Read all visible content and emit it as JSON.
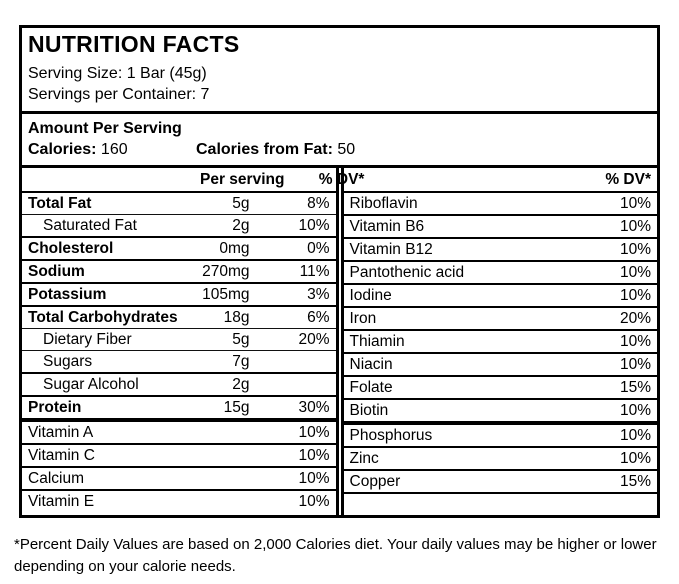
{
  "label": {
    "title": "NUTRITION FACTS",
    "serving_size": "Serving Size: 1 Bar (45g)",
    "servings_per_container": "Servings per Container: 7",
    "amount_per_serving": "Amount Per Serving",
    "calories_label": "Calories:",
    "calories_value": "160",
    "calories_from_fat_label": "Calories from Fat:",
    "calories_from_fat_value": "50"
  },
  "left_table": {
    "header_amount": "Per serving",
    "header_dv": "% DV*",
    "rows": [
      {
        "name": "Total Fat",
        "amount": "5g",
        "dv": "8%",
        "bold": true,
        "indent": false,
        "sep": "thin"
      },
      {
        "name": "Saturated Fat",
        "amount": "2g",
        "dv": "10%",
        "bold": false,
        "indent": true,
        "sep": "med"
      },
      {
        "name": "Cholesterol",
        "amount": "0mg",
        "dv": "0%",
        "bold": true,
        "indent": false,
        "sep": "med"
      },
      {
        "name": "Sodium",
        "amount": "270mg",
        "dv": "11%",
        "bold": true,
        "indent": false,
        "sep": "med"
      },
      {
        "name": "Potassium",
        "amount": "105mg",
        "dv": "3%",
        "bold": true,
        "indent": false,
        "sep": "med"
      },
      {
        "name": "Total Carbohydrates",
        "amount": "18g",
        "dv": "6%",
        "bold": true,
        "indent": false,
        "sep": "thin"
      },
      {
        "name": "Dietary Fiber",
        "amount": "5g",
        "dv": "20%",
        "bold": false,
        "indent": true,
        "sep": "thin"
      },
      {
        "name": "Sugars",
        "amount": "7g",
        "dv": "",
        "bold": false,
        "indent": true,
        "sep": "med"
      },
      {
        "name": "Sugar Alcohol",
        "amount": "2g",
        "dv": "",
        "bold": false,
        "indent": true,
        "sep": "med"
      },
      {
        "name": "Protein",
        "amount": "15g",
        "dv": "30%",
        "bold": true,
        "indent": false,
        "sep": "thick"
      },
      {
        "name": "Vitamin A",
        "amount": "",
        "dv": "10%",
        "bold": false,
        "indent": false,
        "sep": "med"
      },
      {
        "name": "Vitamin C",
        "amount": "",
        "dv": "10%",
        "bold": false,
        "indent": false,
        "sep": "med"
      },
      {
        "name": "Calcium",
        "amount": "",
        "dv": "10%",
        "bold": false,
        "indent": false,
        "sep": "med"
      },
      {
        "name": "Vitamin E",
        "amount": "",
        "dv": "10%",
        "bold": false,
        "indent": false,
        "sep": "none"
      }
    ]
  },
  "right_table": {
    "header_dv": "% DV*",
    "rows": [
      {
        "name": "Riboflavin",
        "dv": "10%",
        "sep": "med"
      },
      {
        "name": "Vitamin B6",
        "dv": "10%",
        "sep": "med"
      },
      {
        "name": "Vitamin B12",
        "dv": "10%",
        "sep": "med"
      },
      {
        "name": "Pantothenic acid",
        "dv": "10%",
        "sep": "med"
      },
      {
        "name": "Iodine",
        "dv": "10%",
        "sep": "med"
      },
      {
        "name": "Iron",
        "dv": "20%",
        "sep": "med"
      },
      {
        "name": "Thiamin",
        "dv": "10%",
        "sep": "med"
      },
      {
        "name": "Niacin",
        "dv": "10%",
        "sep": "med"
      },
      {
        "name": "Folate",
        "dv": "15%",
        "sep": "med"
      },
      {
        "name": "Biotin",
        "dv": "10%",
        "sep": "thick"
      },
      {
        "name": "Phosphorus",
        "dv": "10%",
        "sep": "med"
      },
      {
        "name": "Zinc",
        "dv": "10%",
        "sep": "med"
      },
      {
        "name": "Copper",
        "dv": "15%",
        "sep": "med"
      },
      {
        "name": "",
        "dv": "",
        "sep": "none"
      }
    ]
  },
  "footnote": "*Percent Daily Values are based on 2,000 Calories diet. Your daily values may be higher or lower depending on your calorie needs.",
  "colors": {
    "border": "#000000",
    "text": "#000000",
    "background": "#ffffff"
  }
}
